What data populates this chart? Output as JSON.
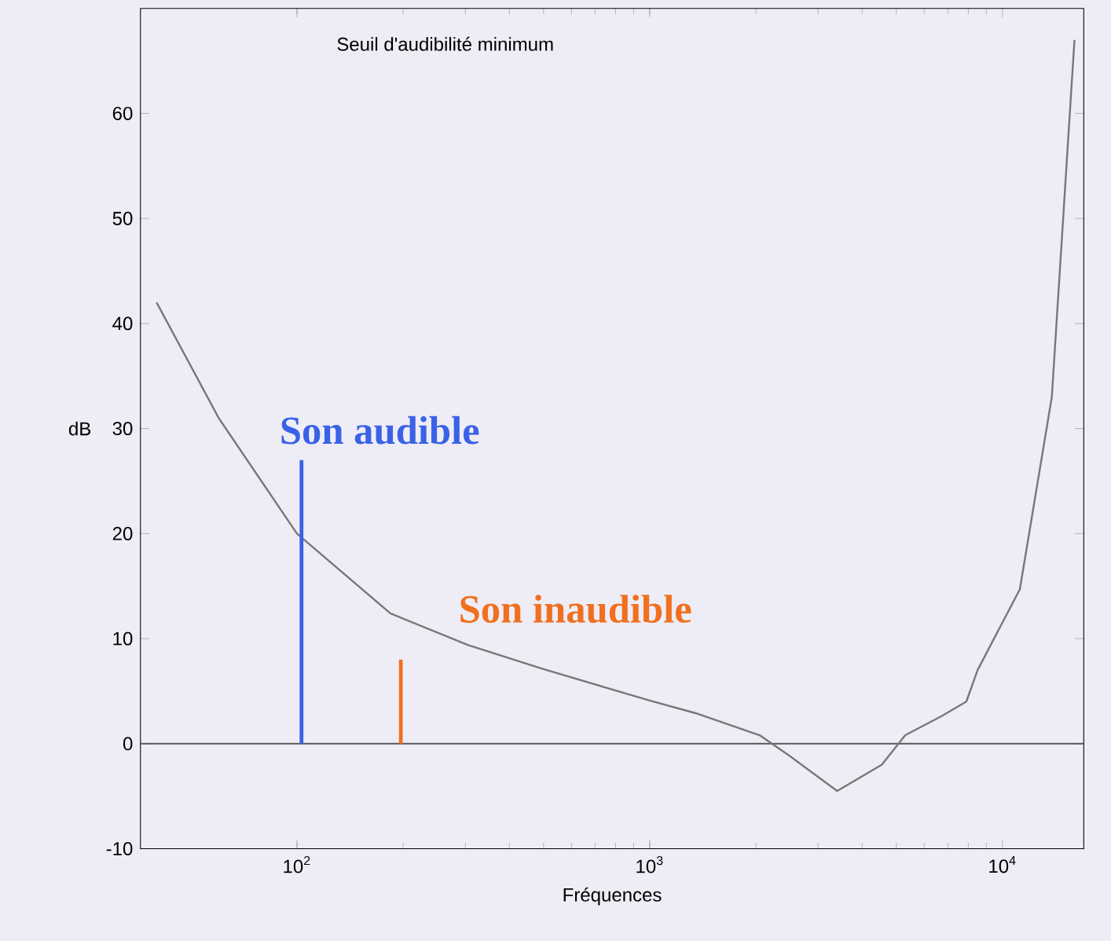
{
  "chart_data": {
    "type": "line",
    "title": "Seuil d'audibilité minimum",
    "xlabel": "Fréquences",
    "ylabel": "dB",
    "log": "x",
    "xlim": [
      36,
      17000
    ],
    "ylim": [
      -10,
      70
    ],
    "xticks": [
      {
        "value": 100,
        "label": "10$^{2}$"
      },
      {
        "value": 1000,
        "label": "10$^{3}$"
      },
      {
        "value": 10000,
        "label": "10$^{4}$"
      }
    ],
    "yticks": [
      -10,
      0,
      10,
      20,
      30,
      40,
      50,
      60
    ],
    "grid": false,
    "marker": "none",
    "line_style": "solid",
    "ref_lines": [
      {
        "axis": "y",
        "value": 0,
        "color": "#555555"
      }
    ],
    "series": [
      {
        "color": "#777777",
        "x": [
          40,
          60,
          100,
          184,
          305,
          500,
          1000,
          1350,
          2050,
          2500,
          3400,
          4550,
          5300,
          6700,
          7900,
          8500,
          11200,
          13800,
          16000
        ],
        "values": [
          42,
          31,
          20,
          12.4,
          9.4,
          7.1,
          4.1,
          2.9,
          0.8,
          -1.2,
          -4.5,
          -2,
          0.8,
          2.6,
          4,
          7,
          14.7,
          33,
          67
        ]
      },
      {
        "name": "Son audible",
        "color": "#3a62e6",
        "x": [
          103,
          103
        ],
        "values": [
          0,
          27
        ]
      },
      {
        "name": "Son inaudible",
        "color": "#f07020",
        "x": [
          197,
          197
        ],
        "values": [
          0,
          8
        ]
      }
    ]
  }
}
